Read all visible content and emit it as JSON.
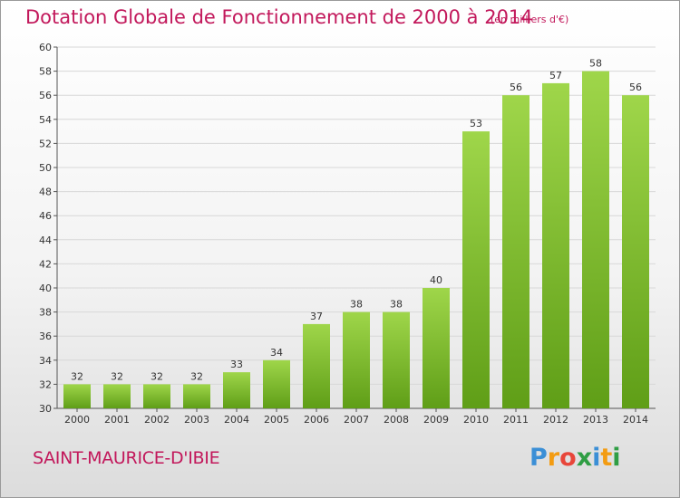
{
  "header": {
    "title": "Dotation Globale de Fonctionnement de 2000 à 2014",
    "unit": "(en milliers d'€)"
  },
  "commune": "SAINT-MAURICE-D'IBIE",
  "logo": {
    "text": "Proxiti",
    "letter_colors": [
      "#3b8fd6",
      "#f39c12",
      "#e8463a",
      "#2f9e44",
      "#3b8fd6",
      "#f39c12",
      "#2f9e44"
    ]
  },
  "colors": {
    "bar_light": "#9fd64a",
    "bar_dark": "#5f9e17",
    "grid": "#d8d8d8",
    "title": "#c2185b"
  },
  "chart_data": {
    "type": "bar",
    "title": "Dotation Globale de Fonctionnement de 2000 à 2014",
    "xlabel": "",
    "ylabel": "",
    "categories": [
      "2000",
      "2001",
      "2002",
      "2003",
      "2004",
      "2005",
      "2006",
      "2007",
      "2008",
      "2009",
      "2010",
      "2011",
      "2012",
      "2013",
      "2014"
    ],
    "values": [
      32,
      32,
      32,
      32,
      33,
      34,
      37,
      38,
      38,
      40,
      53,
      56,
      57,
      58,
      56
    ],
    "ylim": [
      30,
      60
    ],
    "yticks": [
      30,
      32,
      34,
      36,
      38,
      40,
      42,
      44,
      46,
      48,
      50,
      52,
      54,
      56,
      58,
      60
    ],
    "grid": true,
    "data_labels": true
  }
}
